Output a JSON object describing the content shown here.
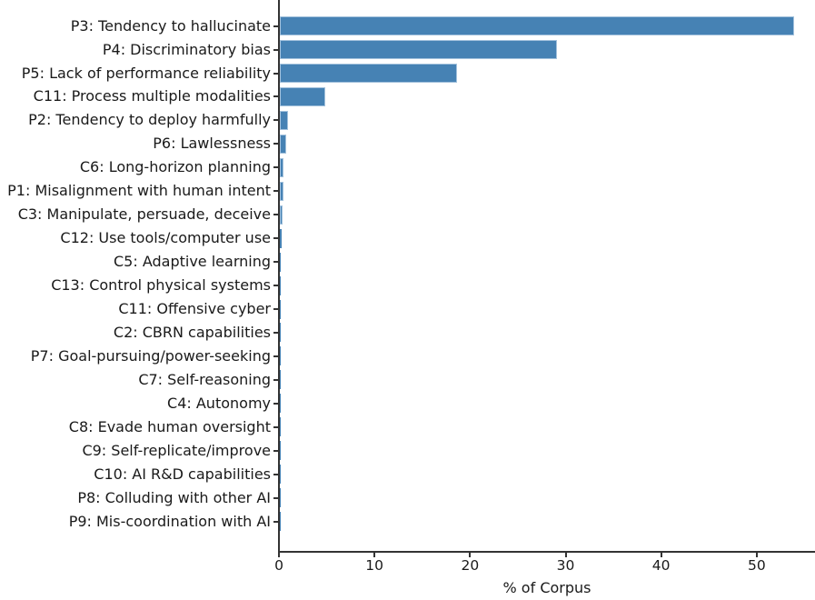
{
  "chart_data": {
    "type": "bar",
    "orientation": "horizontal",
    "title": "",
    "xlabel": "% of Corpus",
    "ylabel": "",
    "categories": [
      "P3: Tendency to hallucinate",
      "P4: Discriminatory bias",
      "P5: Lack of performance reliability",
      "C11: Process multiple modalities",
      "P2: Tendency to deploy harmfully",
      "P6: Lawlessness",
      "C6: Long-horizon planning",
      "P1: Misalignment with human intent",
      "C3: Manipulate, persuade, deceive",
      "C12: Use tools/computer use",
      "C5: Adaptive learning",
      "C13: Control physical systems",
      "C11: Offensive cyber",
      "C2: CBRN capabilities",
      "P7: Goal-pursuing/power-seeking",
      "C7: Self-reasoning",
      "C4: Autonomy",
      "C8: Evade human oversight",
      "C9: Self-replicate/improve",
      "C10: AI R&D capabilities",
      "P8: Colluding with other AI",
      "P9: Mis-coordination with AI"
    ],
    "values": [
      53.8,
      29.0,
      18.5,
      4.8,
      0.9,
      0.65,
      0.35,
      0.35,
      0.3,
      0.15,
      0.1,
      0.1,
      0.08,
      0.07,
      0.06,
      0.05,
      0.05,
      0.04,
      0.03,
      0.03,
      0.02,
      0.02
    ],
    "xticks": [
      0,
      10,
      20,
      30,
      40,
      50
    ],
    "xlim": [
      0,
      56.1
    ],
    "grid": false,
    "legend": false,
    "bar_color": "#4682b4",
    "bar_edge_color": "#a2c1dc",
    "axis_color": "#333333",
    "text_color": "#1a1a1a"
  }
}
